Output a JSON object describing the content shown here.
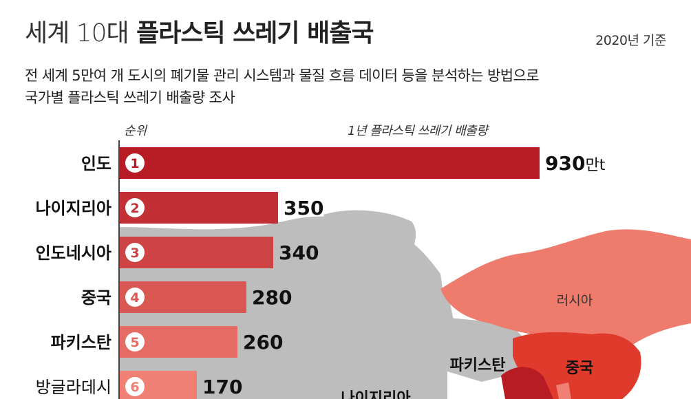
{
  "header": {
    "title_light": "세계 10대",
    "title_bold": "플라스틱 쓰레기 배출국",
    "basis": "2020년 기준",
    "subtitle_line1": "전 세계 5만여 개 도시의 폐기물 관리 시스템과 물질 흐름 데이터 등을 분석하는 방법으로",
    "subtitle_line2": "국가별 플라스틱 쓰레기 배출량 조사"
  },
  "colors": {
    "bar_dark": "#b71c25",
    "bar_light": "#f08074",
    "map_land": "#bdbdbd",
    "map_highlight": "#ee7b6c",
    "map_china": "#e03a2d",
    "map_india": "#b71c25"
  },
  "map": {
    "labels": [
      "러시아",
      "중국",
      "파키스탄",
      "나이지리아"
    ]
  },
  "chart_data": {
    "type": "bar",
    "orientation": "horizontal",
    "rank_header": "순위",
    "value_header": "1년 플라스틱 쓰레기 배출량",
    "unit": "만t",
    "categories": [
      "인도",
      "나이지리아",
      "인도네시아",
      "중국",
      "파키스탄",
      "방글라데시"
    ],
    "ranks": [
      "1",
      "2",
      "3",
      "4",
      "5",
      "6"
    ],
    "values": [
      930,
      350,
      340,
      280,
      260,
      170
    ],
    "value_labels": [
      "930",
      "350",
      "340",
      "280",
      "260",
      "170"
    ],
    "xlim": [
      0,
      930
    ]
  }
}
